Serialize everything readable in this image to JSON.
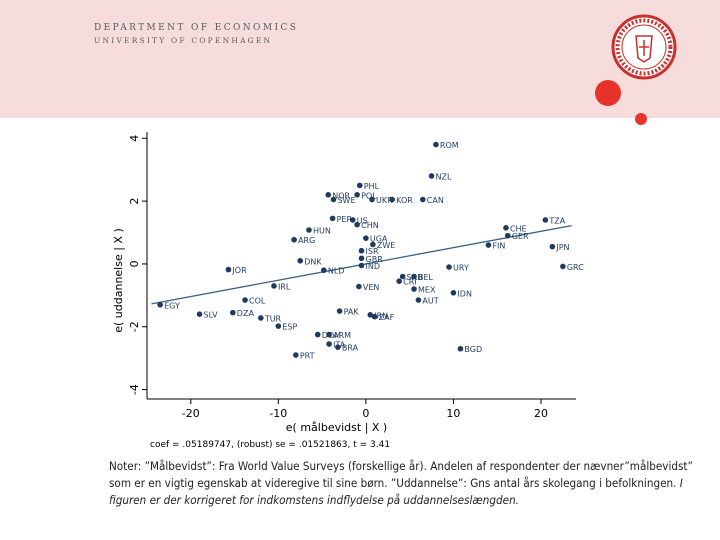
{
  "header": {
    "department": "DEPARTMENT OF ECONOMICS",
    "university": "UNIVERSITY OF COPENHAGEN",
    "accent_color": "#e8332a",
    "banner_color": "#f7dcdc"
  },
  "chart_data": {
    "type": "scatter",
    "xlabel": "e( målbevidst | X )",
    "ylabel": "e( uddannelse | X )",
    "xlim": [
      -25,
      24
    ],
    "ylim": [
      -4.3,
      4.2
    ],
    "xticks": [
      -20,
      -10,
      0,
      10,
      20
    ],
    "yticks": [
      -4,
      -2,
      0,
      2,
      4
    ],
    "points": [
      {
        "label": "ROM",
        "x": 8,
        "y": 3.8
      },
      {
        "label": "NZL",
        "x": 7.5,
        "y": 2.8
      },
      {
        "label": "PHL",
        "x": -0.7,
        "y": 2.5
      },
      {
        "label": "NOR",
        "x": -4.3,
        "y": 2.2
      },
      {
        "label": "POL",
        "x": -1.0,
        "y": 2.2
      },
      {
        "label": "SWE",
        "x": -3.7,
        "y": 2.05
      },
      {
        "label": "UKR",
        "x": 0.7,
        "y": 2.05
      },
      {
        "label": "KOR",
        "x": 3.0,
        "y": 2.05
      },
      {
        "label": "CAN",
        "x": 6.5,
        "y": 2.05
      },
      {
        "label": "PER",
        "x": -3.8,
        "y": 1.45
      },
      {
        "label": "US",
        "x": -1.5,
        "y": 1.4
      },
      {
        "label": "CHN",
        "x": -1.0,
        "y": 1.25
      },
      {
        "label": "TZA",
        "x": 20.5,
        "y": 1.4
      },
      {
        "label": "HUN",
        "x": -6.5,
        "y": 1.08
      },
      {
        "label": "CHE",
        "x": 16.0,
        "y": 1.15
      },
      {
        "label": "GER",
        "x": 16.2,
        "y": 0.9
      },
      {
        "label": "UGA",
        "x": 0.0,
        "y": 0.82
      },
      {
        "label": "ARG",
        "x": -8.2,
        "y": 0.77
      },
      {
        "label": "ZWE",
        "x": 0.8,
        "y": 0.62
      },
      {
        "label": "FIN",
        "x": 14.0,
        "y": 0.6
      },
      {
        "label": "JPN",
        "x": 21.3,
        "y": 0.55
      },
      {
        "label": "ISR",
        "x": -0.5,
        "y": 0.42
      },
      {
        "label": "GBR",
        "x": -0.5,
        "y": 0.18
      },
      {
        "label": "DNK",
        "x": -7.5,
        "y": 0.1
      },
      {
        "label": "IND",
        "x": -0.5,
        "y": -0.05
      },
      {
        "label": "NLD",
        "x": -4.8,
        "y": -0.2
      },
      {
        "label": "URY",
        "x": 9.5,
        "y": -0.1
      },
      {
        "label": "GRC",
        "x": 22.5,
        "y": -0.08
      },
      {
        "label": "JOR",
        "x": -15.7,
        "y": -0.18
      },
      {
        "label": "SRB",
        "x": 4.2,
        "y": -0.4
      },
      {
        "label": "BEL",
        "x": 5.5,
        "y": -0.4
      },
      {
        "label": "CRI",
        "x": 3.8,
        "y": -0.55
      },
      {
        "label": "IRL",
        "x": -10.5,
        "y": -0.7
      },
      {
        "label": "VEN",
        "x": -0.8,
        "y": -0.72
      },
      {
        "label": "MEX",
        "x": 5.5,
        "y": -0.8
      },
      {
        "label": "IDN",
        "x": 10.0,
        "y": -0.92
      },
      {
        "label": "COL",
        "x": -13.8,
        "y": -1.15
      },
      {
        "label": "AUT",
        "x": 6.0,
        "y": -1.15
      },
      {
        "label": "EGY",
        "x": -23.5,
        "y": -1.3
      },
      {
        "label": "PAK",
        "x": -3.0,
        "y": -1.5
      },
      {
        "label": "SLV",
        "x": -19.0,
        "y": -1.6
      },
      {
        "label": "DZA",
        "x": -15.2,
        "y": -1.55
      },
      {
        "label": "IRN",
        "x": 0.5,
        "y": -1.62
      },
      {
        "label": "ZAF",
        "x": 1.0,
        "y": -1.68
      },
      {
        "label": "TUR",
        "x": -12.0,
        "y": -1.72
      },
      {
        "label": "ESP",
        "x": -10.0,
        "y": -1.98
      },
      {
        "label": "DOM",
        "x": -5.5,
        "y": -2.25
      },
      {
        "label": "ARM",
        "x": -4.2,
        "y": -2.25
      },
      {
        "label": "ITA",
        "x": -4.2,
        "y": -2.55
      },
      {
        "label": "BRA",
        "x": -3.2,
        "y": -2.65
      },
      {
        "label": "BGD",
        "x": 10.8,
        "y": -2.7
      },
      {
        "label": "PRT",
        "x": -8.0,
        "y": -2.9
      }
    ],
    "fit_line": {
      "intercept": 0,
      "slope": 0.05189747,
      "x_range": [
        -24.5,
        23.5
      ]
    },
    "annotation": "coef = .05189747, (robust) se = .01521863, t = 3.41"
  },
  "note": {
    "prefix": "Noter: ”Målbevidst”: Fra World Value Surveys (forskellige år). Andelen af respondenter der nævner”målbevidst” som er en vigtig egenskab at videregive til sine børn. ”Uddannelse”: Gns antal års skolegang i befolkningen.",
    "italic": "I figuren er der korrigeret for indkomstens indflydelse på uddannelseslængden."
  }
}
